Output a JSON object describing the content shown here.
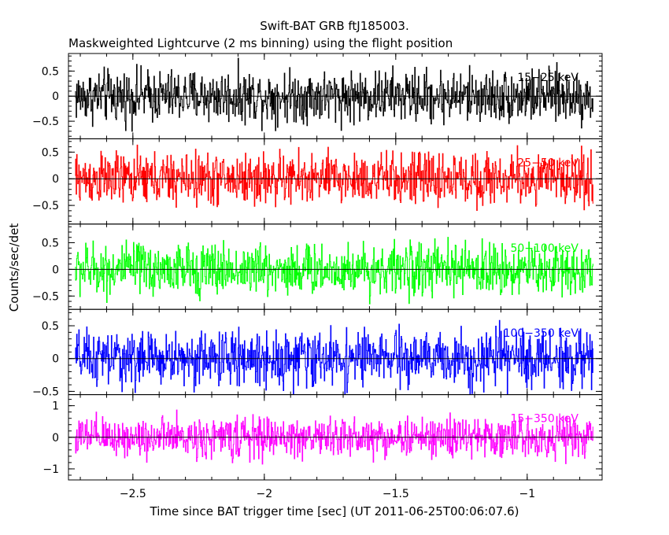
{
  "chart_data": {
    "type": "line",
    "title": "Swift-BAT GRB ftJ185003.",
    "subtitle": "Maskweighted Lightcurve (2 ms binning) using the flight position",
    "xlabel": "Time since BAT trigger time [sec] (UT 2011-06-25T00:06:07.6)",
    "ylabel": "Counts/sec/det",
    "xlim": [
      -2.745,
      -0.715
    ],
    "x_data_range": [
      -2.72,
      -0.75
    ],
    "bin_width": 0.002,
    "x_ticks": [
      -2.5,
      -2,
      -1.5,
      -1
    ],
    "x_tick_labels": [
      "−2.5",
      "−2",
      "−1.5",
      "−1"
    ],
    "grid": false,
    "panels": [
      {
        "name": "15-25 keV",
        "label": "15−25 keV",
        "color": "#000000",
        "ylim": [
          -0.85,
          0.85
        ],
        "y_ticks": [
          0.5,
          0,
          -0.5
        ],
        "y_tick_labels": [
          "0.5",
          "0",
          "−0.5"
        ],
        "amplitude": 0.45
      },
      {
        "name": "25-50 keV",
        "label": "25−50 keV",
        "color": "#ff0000",
        "ylim": [
          -0.85,
          0.75
        ],
        "y_ticks": [
          0.5,
          0,
          -0.5
        ],
        "y_tick_labels": [
          "0.5",
          "0",
          "−0.5"
        ],
        "amplitude": 0.42
      },
      {
        "name": "50-100 keV",
        "label": "50−100 keV",
        "color": "#00ff00",
        "ylim": [
          -0.75,
          0.85
        ],
        "y_ticks": [
          0.5,
          0,
          -0.5
        ],
        "y_tick_labels": [
          "0.5",
          "0",
          "−0.5"
        ],
        "amplitude": 0.42
      },
      {
        "name": "100-350 keV",
        "label": "100−350 keV",
        "color": "#0000ff",
        "ylim": [
          -0.55,
          0.75
        ],
        "y_ticks": [
          0.5,
          0,
          -0.5
        ],
        "y_tick_labels": [
          "0.5",
          "0",
          "−0.5"
        ],
        "amplitude": 0.36
      },
      {
        "name": "15-350 keV",
        "label": "15−350 keV",
        "color": "#ff00ff",
        "ylim": [
          -1.35,
          1.35
        ],
        "y_ticks": [
          1,
          0,
          -1
        ],
        "y_tick_labels": [
          "1",
          "0",
          "−1"
        ],
        "amplitude": 0.55
      }
    ]
  }
}
